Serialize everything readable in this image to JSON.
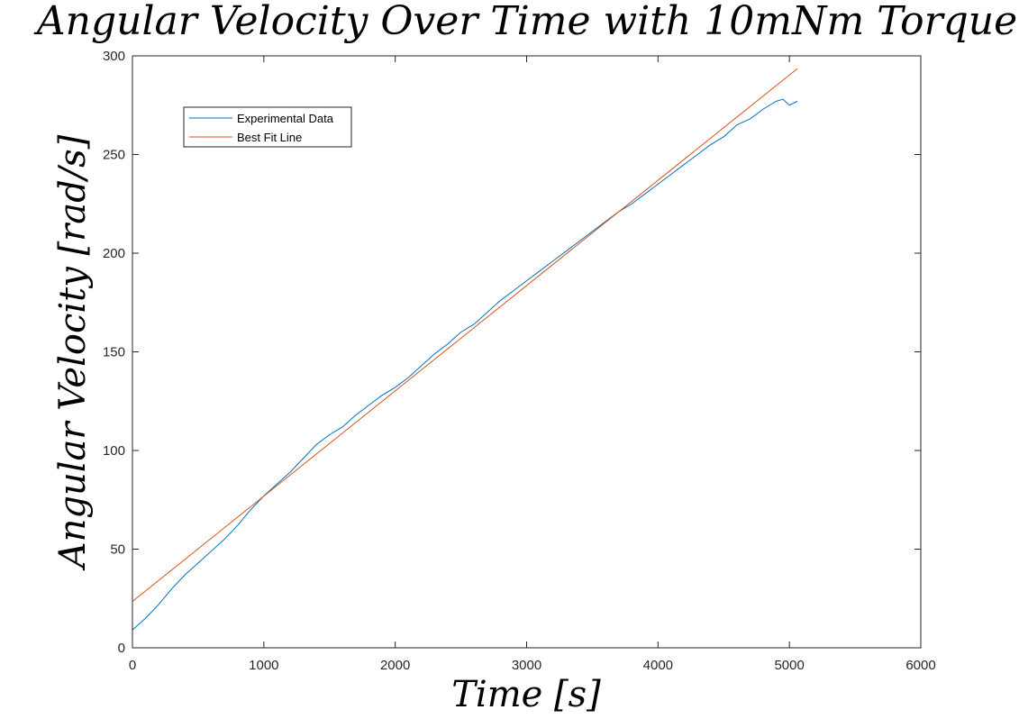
{
  "chart_data": {
    "type": "line",
    "title": "Angular Velocity Over Time with 10mNm Torque",
    "xlabel": "Time [s]",
    "ylabel": "Angular Velocity [rad/s]",
    "xlim": [
      0,
      6000
    ],
    "ylim": [
      0,
      300
    ],
    "xticks": [
      0,
      1000,
      2000,
      3000,
      4000,
      5000,
      6000
    ],
    "yticks": [
      0,
      50,
      100,
      150,
      200,
      250,
      300
    ],
    "grid": false,
    "legend_position": "top-left",
    "series": [
      {
        "name": "Experimental Data",
        "color": "#0072BD",
        "x": [
          0,
          100,
          200,
          300,
          400,
          500,
          600,
          700,
          800,
          900,
          1000,
          1100,
          1200,
          1300,
          1400,
          1500,
          1600,
          1700,
          1800,
          1900,
          2000,
          2100,
          2200,
          2300,
          2400,
          2500,
          2600,
          2700,
          2800,
          2900,
          3000,
          3100,
          3200,
          3300,
          3400,
          3500,
          3600,
          3700,
          3800,
          3900,
          4000,
          4100,
          4200,
          4300,
          4400,
          4500,
          4600,
          4700,
          4800,
          4900,
          4950,
          5000,
          5060
        ],
        "y": [
          9,
          15,
          22,
          30,
          37,
          43,
          49,
          55,
          62,
          70,
          77,
          83,
          89,
          96,
          103,
          108,
          112,
          118,
          123,
          128,
          132,
          137,
          143,
          149,
          154,
          160,
          164,
          170,
          176,
          181,
          186,
          191,
          196,
          201,
          206,
          211,
          216,
          221,
          225,
          230,
          235,
          240,
          245,
          250,
          255,
          259,
          265,
          268,
          273,
          277,
          278,
          275,
          277
        ]
      },
      {
        "name": "Best Fit Line",
        "color": "#D95319",
        "x": [
          0,
          5060
        ],
        "y": [
          23.5,
          293.5
        ]
      }
    ]
  }
}
